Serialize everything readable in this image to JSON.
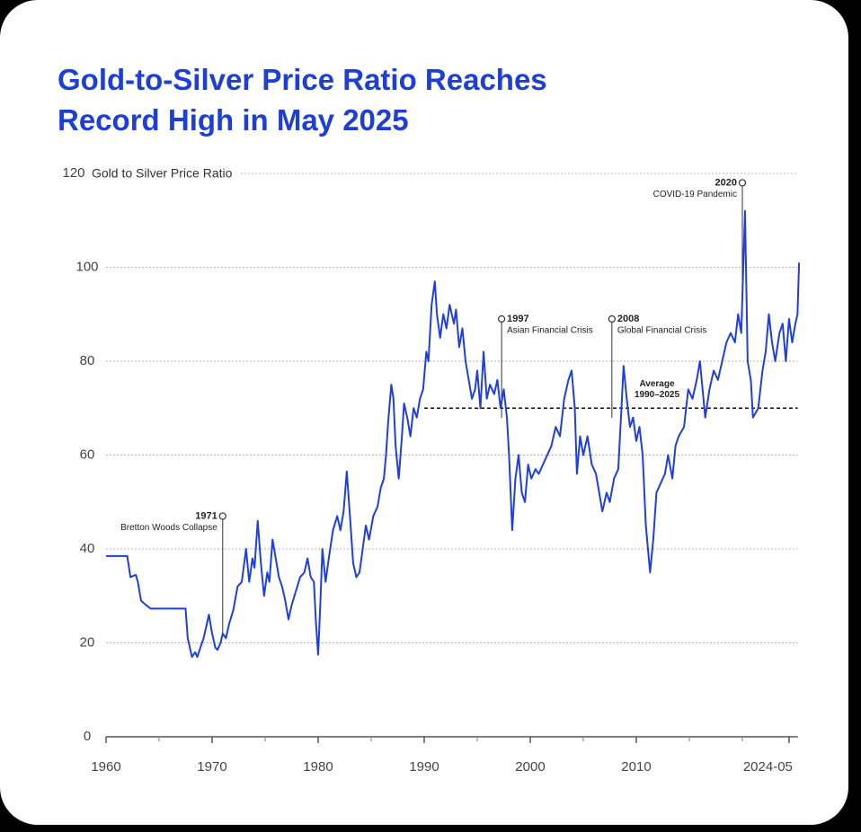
{
  "chart_data": {
    "type": "line",
    "title": [
      "Gold-to-Silver Price Ratio Reaches",
      "Record High in May 2025"
    ],
    "y_label": "Gold to Silver Price Ratio",
    "xlim": [
      1960,
      2025.4
    ],
    "ylim": [
      0,
      120
    ],
    "yticks": [
      0,
      20,
      40,
      60,
      80,
      100,
      120
    ],
    "xticks": [
      1960,
      1970,
      1980,
      1990,
      2000,
      2010,
      {
        "value": 2024.4,
        "label": "2024-05"
      }
    ],
    "xminorticks": [
      1965,
      1975,
      1985,
      1995,
      2005,
      2015,
      2020
    ],
    "grid": true,
    "series": [
      {
        "name": "Gold to Silver Price Ratio",
        "color": "#1f3fe0",
        "x": [
          1960,
          1962.0,
          1962.3,
          1962.8,
          1963.0,
          1963.3,
          1963.8,
          1964.2,
          1967.5,
          1967.7,
          1967.9,
          1968.1,
          1968.4,
          1968.6,
          1968.9,
          1969.2,
          1969.5,
          1969.7,
          1970.0,
          1970.3,
          1970.5,
          1970.8,
          1971.0,
          1971.3,
          1971.6,
          1972.0,
          1972.4,
          1972.8,
          1973.2,
          1973.5,
          1973.8,
          1974.0,
          1974.3,
          1974.6,
          1974.9,
          1975.2,
          1975.4,
          1975.7,
          1976.0,
          1976.3,
          1976.6,
          1976.9,
          1977.2,
          1977.5,
          1977.9,
          1978.3,
          1978.7,
          1979.0,
          1979.3,
          1979.6,
          1979.8,
          1980.0,
          1980.2,
          1980.4,
          1980.7,
          1981.0,
          1981.4,
          1981.8,
          1982.1,
          1982.4,
          1982.7,
          1983.0,
          1983.3,
          1983.6,
          1983.9,
          1984.2,
          1984.5,
          1984.8,
          1985.2,
          1985.6,
          1985.9,
          1986.2,
          1986.4,
          1986.6,
          1986.9,
          1987.1,
          1987.3,
          1987.6,
          1987.9,
          1988.1,
          1988.4,
          1988.7,
          1989.0,
          1989.3,
          1989.6,
          1989.9,
          1990.2,
          1990.4,
          1990.7,
          1991.0,
          1991.2,
          1991.5,
          1991.8,
          1992.1,
          1992.4,
          1992.8,
          1993.0,
          1993.3,
          1993.6,
          1993.9,
          1994.2,
          1994.5,
          1994.8,
          1995.0,
          1995.3,
          1995.6,
          1995.9,
          1996.2,
          1996.6,
          1996.9,
          1997.2,
          1997.5,
          1997.8,
          1998.0,
          1998.3,
          1998.6,
          1998.9,
          1999.2,
          1999.5,
          1999.8,
          2000.1,
          2000.5,
          2000.8,
          2001.2,
          2001.6,
          2002.0,
          2002.4,
          2002.8,
          2003.2,
          2003.6,
          2003.9,
          2004.2,
          2004.4,
          2004.7,
          2005.0,
          2005.4,
          2005.8,
          2006.2,
          2006.5,
          2006.8,
          2007.2,
          2007.5,
          2007.9,
          2008.3,
          2008.6,
          2008.8,
          2009.1,
          2009.4,
          2009.7,
          2010.0,
          2010.3,
          2010.6,
          2010.9,
          2011.3,
          2011.6,
          2011.9,
          2012.3,
          2012.7,
          2013.0,
          2013.4,
          2013.7,
          2014.0,
          2014.5,
          2014.9,
          2015.3,
          2015.7,
          2016.0,
          2016.5,
          2016.9,
          2017.3,
          2017.7,
          2018.1,
          2018.5,
          2018.9,
          2019.3,
          2019.6,
          2019.9,
          2020.25,
          2020.5,
          2020.8,
          2021.0,
          2021.5,
          2021.9,
          2022.2,
          2022.5,
          2022.8,
          2023.1,
          2023.5,
          2023.8,
          2024.1,
          2024.4,
          2024.7,
          2025.0,
          2025.2,
          2025.35
        ],
        "values": [
          38.5,
          38.5,
          34,
          34.5,
          33,
          29,
          28,
          27.3,
          27.3,
          21,
          19,
          17,
          18,
          17,
          19,
          21,
          24,
          26,
          22,
          19,
          18.5,
          20,
          22,
          21,
          24,
          27,
          32,
          33,
          40,
          33,
          38,
          36,
          46,
          37,
          30,
          35,
          33,
          42,
          38,
          34,
          32,
          29,
          25,
          28,
          31,
          34,
          35,
          38,
          34,
          33,
          24,
          17.5,
          28,
          40,
          33,
          38,
          44,
          47,
          44,
          48,
          56.5,
          47,
          37,
          34,
          35,
          40,
          45,
          42,
          47,
          49,
          53,
          55,
          60,
          67,
          75,
          72,
          62,
          55,
          64,
          71,
          68,
          64,
          70,
          68,
          72,
          74,
          82,
          80,
          92,
          97,
          90,
          85,
          90,
          87,
          92,
          88,
          91,
          83,
          87,
          80,
          76,
          72,
          74,
          78,
          70,
          82,
          72,
          75,
          73,
          76,
          70,
          74,
          68,
          60,
          44,
          55,
          60,
          52,
          50,
          58,
          55,
          57,
          56,
          58,
          60,
          62,
          66,
          64,
          72,
          76,
          78,
          70,
          56,
          64,
          60,
          64,
          58,
          56,
          52,
          48,
          52,
          50,
          55,
          57,
          70,
          79,
          72,
          66,
          68,
          63,
          66,
          60,
          45,
          35,
          42,
          52,
          54,
          56,
          60,
          55,
          62,
          64,
          66,
          74,
          72,
          76,
          80,
          68,
          74,
          78,
          76,
          80,
          84,
          86,
          84,
          90,
          86,
          112,
          80,
          76,
          68,
          70,
          78,
          82,
          90,
          84,
          80,
          86,
          88,
          80,
          89,
          84,
          88,
          90,
          101
        ]
      }
    ],
    "average": {
      "value": 70,
      "from": 1990,
      "to": 2025.4,
      "label": [
        "Average",
        "1990–2025"
      ]
    },
    "annotations": [
      {
        "x": 1971,
        "y": 47,
        "year": "1971",
        "text": "Bretton Woods Collapse",
        "side": "left"
      },
      {
        "x": 1997.3,
        "y": 89,
        "year": "1997",
        "text": "Asian Financial Crisis",
        "side": "right"
      },
      {
        "x": 2007.7,
        "y": 89,
        "year": "2008",
        "text": "Global Financial Crisis",
        "side": "right"
      },
      {
        "x": 2020,
        "y": 118,
        "year": "2020",
        "text": "COVID-19 Pandemic",
        "side": "left"
      }
    ]
  }
}
